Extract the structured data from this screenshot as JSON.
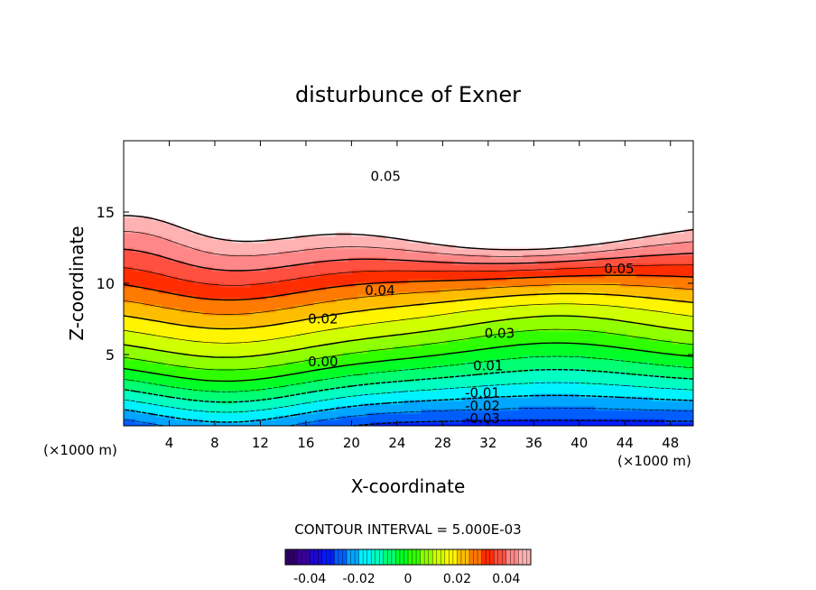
{
  "chart_data": {
    "type": "heatmap",
    "title": "disturbunce of Exner",
    "xlabel": "X-coordinate",
    "ylabel": "Z-coordinate",
    "x_unit": "(×1000 m)",
    "y_unit": "(×1000 m)",
    "xlim": [
      0,
      50
    ],
    "ylim": [
      0,
      20
    ],
    "x_ticks": [
      4,
      8,
      12,
      16,
      20,
      24,
      28,
      32,
      36,
      40,
      44,
      48
    ],
    "y_ticks": [
      5,
      10,
      15
    ],
    "contour_interval_text": "CONTOUR INTERVAL = 5.000E-03",
    "contour_interval": 0.005,
    "value_range": [
      -0.05,
      0.05
    ],
    "colorbar": {
      "min": -0.05,
      "max": 0.05,
      "tick_values": [
        -0.04,
        -0.02,
        0,
        0.02,
        0.04
      ],
      "tick_labels": [
        "-0.04",
        "-0.02",
        "0",
        "0.02",
        "0.04"
      ],
      "palette": [
        "#2a0050",
        "#3a00a0",
        "#0010ff",
        "#0080ff",
        "#00ffff",
        "#00ff80",
        "#00ff00",
        "#a0ff00",
        "#ffff00",
        "#ffa000",
        "#ff2000",
        "#ff8080",
        "#ffc8c8"
      ]
    },
    "contour_labels": [
      {
        "text": "0.05",
        "x": 23,
        "z": 17.5
      },
      {
        "text": "0.05",
        "x": 43.5,
        "z": 11
      },
      {
        "text": "0.04",
        "x": 22.5,
        "z": 9.5
      },
      {
        "text": "0.03",
        "x": 33,
        "z": 6.5
      },
      {
        "text": "0.02",
        "x": 17.5,
        "z": 7.5
      },
      {
        "text": "0.01",
        "x": 32,
        "z": 4.2
      },
      {
        "text": "0.00",
        "x": 17.5,
        "z": 4.5
      },
      {
        "text": "-0.01",
        "x": 31.5,
        "z": 2.3
      },
      {
        "text": "-0.02",
        "x": 31.5,
        "z": 1.4
      },
      {
        "text": "-0.03",
        "x": 31.5,
        "z": 0.5
      }
    ]
  }
}
